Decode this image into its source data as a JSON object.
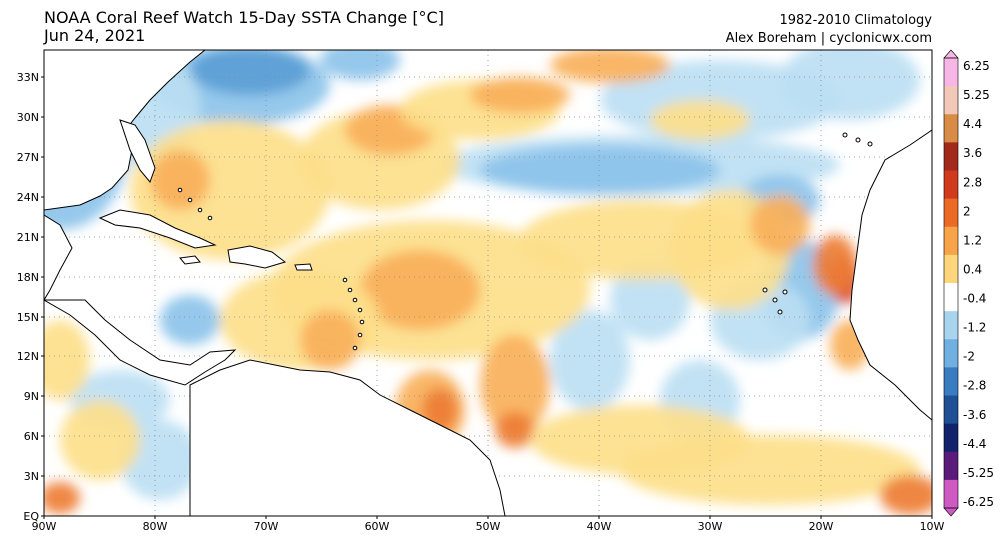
{
  "title": {
    "line1": "NOAA Coral Reef Watch 15-Day SSTA Change [°C]",
    "line2": "Jun 24, 2021"
  },
  "credit": {
    "line1": "1982-2010 Climatology",
    "line2": "Alex Boreham | cyclonicwx.com"
  },
  "axes": {
    "lat_labels": [
      "33N",
      "30N",
      "27N",
      "24N",
      "21N",
      "18N",
      "15N",
      "12N",
      "9N",
      "6N",
      "3N",
      "EQ"
    ],
    "lon_labels": [
      "90W",
      "80W",
      "70W",
      "60W",
      "50W",
      "40W",
      "30W",
      "20W",
      "10W"
    ]
  },
  "colorbar": {
    "labels": [
      "6.25",
      "5.25",
      "4.4",
      "3.6",
      "2.8",
      "2",
      "1.2",
      "0.4",
      "-0.4",
      "-1.2",
      "-2",
      "-2.8",
      "-3.6",
      "-4.4",
      "-5.25",
      "-6.25"
    ],
    "colors": [
      "#f7b6e6",
      "#f2c9b8",
      "#d88c45",
      "#a22a1c",
      "#d23a1e",
      "#ec6a25",
      "#f7a448",
      "#fdd67c",
      "#ffffff",
      "#a9d4ee",
      "#6fb0e0",
      "#3a7cc1",
      "#1f4f95",
      "#12226b",
      "#5a1b7a",
      "#d05ac4"
    ]
  },
  "palette": {
    "land": "#ffffff",
    "ocean_neutral": "#ffffff",
    "warm_light": "#fde08a",
    "warm_mid": "#f8b05a",
    "warm_strong": "#ee7d35",
    "warm_hot": "#d9482a",
    "cool_light": "#bcdff3",
    "cool_mid": "#8cc3ea",
    "cool_strong": "#5c9fd6",
    "coast": "#000000",
    "grid": "#888888"
  }
}
